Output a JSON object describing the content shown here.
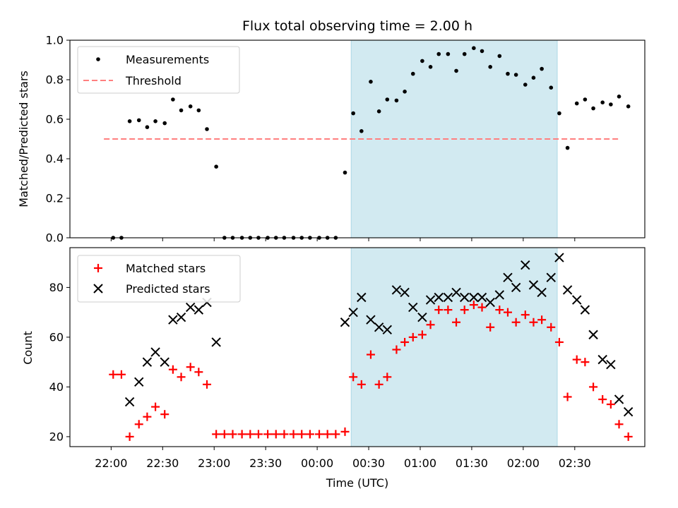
{
  "chart_data": [
    {
      "type": "scatter",
      "title": "Flux total observing time = 2.00 h",
      "ylabel": "Matched/Predicted stars",
      "xlabel": "",
      "ylim": [
        0.0,
        1.0
      ],
      "yticks": [
        "0.0",
        "0.2",
        "0.4",
        "0.6",
        "0.8",
        "1.0"
      ],
      "ytick_values": [
        0.0,
        0.2,
        0.4,
        0.6,
        0.8,
        1.0
      ],
      "legend_position": "top-left",
      "threshold": {
        "name": "Threshold",
        "value": 0.5,
        "x_start": -0.67,
        "x_end": 4.33,
        "color": "#ff7f7f"
      },
      "highlight": {
        "x_start": 1.73,
        "x_end": 3.73,
        "color": "#add8e6"
      },
      "series": [
        {
          "name": "Measurements",
          "color": "#000000",
          "marker": "dot",
          "points": [
            [
              -0.58,
              0.0
            ],
            [
              -0.5,
              0.0
            ],
            [
              -0.42,
              0.59
            ],
            [
              -0.33,
              0.595
            ],
            [
              -0.25,
              0.56
            ],
            [
              -0.17,
              0.59
            ],
            [
              -0.08,
              0.58
            ],
            [
              0.0,
              0.7
            ],
            [
              0.08,
              0.645
            ],
            [
              0.17,
              0.665
            ],
            [
              0.25,
              0.645
            ],
            [
              0.33,
              0.55
            ],
            [
              0.42,
              0.36
            ],
            [
              0.5,
              0.0
            ],
            [
              0.58,
              0.0
            ],
            [
              0.67,
              0.0
            ],
            [
              0.75,
              0.0
            ],
            [
              0.83,
              0.0
            ],
            [
              0.92,
              0.0
            ],
            [
              1.0,
              0.0
            ],
            [
              1.08,
              0.0
            ],
            [
              1.17,
              0.0
            ],
            [
              1.25,
              0.0
            ],
            [
              1.33,
              0.0
            ],
            [
              1.42,
              0.0
            ],
            [
              1.5,
              0.0
            ],
            [
              1.58,
              0.0
            ],
            [
              1.67,
              0.33
            ],
            [
              1.75,
              0.63
            ],
            [
              1.83,
              0.54
            ],
            [
              1.92,
              0.79
            ],
            [
              2.0,
              0.64
            ],
            [
              2.08,
              0.7
            ],
            [
              2.17,
              0.695
            ],
            [
              2.25,
              0.74
            ],
            [
              2.33,
              0.83
            ],
            [
              2.42,
              0.895
            ],
            [
              2.5,
              0.865
            ],
            [
              2.58,
              0.93
            ],
            [
              2.67,
              0.93
            ],
            [
              2.75,
              0.845
            ],
            [
              2.83,
              0.93
            ],
            [
              2.92,
              0.96
            ],
            [
              3.0,
              0.945
            ],
            [
              3.08,
              0.865
            ],
            [
              3.17,
              0.92
            ],
            [
              3.25,
              0.83
            ],
            [
              3.33,
              0.825
            ],
            [
              3.42,
              0.775
            ],
            [
              3.5,
              0.81
            ],
            [
              3.58,
              0.855
            ],
            [
              3.67,
              0.76
            ],
            [
              3.75,
              0.63
            ],
            [
              3.83,
              0.455
            ],
            [
              3.92,
              0.68
            ],
            [
              4.0,
              0.7
            ],
            [
              4.08,
              0.655
            ],
            [
              4.17,
              0.685
            ],
            [
              4.25,
              0.675
            ],
            [
              4.33,
              0.715
            ],
            [
              4.42,
              0.665
            ]
          ]
        }
      ]
    },
    {
      "type": "scatter",
      "title": "",
      "ylabel": "Count",
      "xlabel": "Time (UTC)",
      "ylim": [
        16,
        96
      ],
      "yticks": [
        "20",
        "40",
        "60",
        "80"
      ],
      "ytick_values": [
        20,
        40,
        60,
        80
      ],
      "xlim": [
        -1.0,
        4.58
      ],
      "xticks": [
        "22:00",
        "22:30",
        "23:00",
        "23:30",
        "00:00",
        "00:30",
        "01:00",
        "01:30",
        "02:00",
        "02:30"
      ],
      "xtick_values": [
        -0.6,
        -0.1,
        0.4,
        0.9,
        1.4,
        1.9,
        2.4,
        2.9,
        3.4,
        3.9
      ],
      "legend_position": "top-left",
      "highlight": {
        "x_start": 1.73,
        "x_end": 3.73,
        "color": "#add8e6"
      },
      "series": [
        {
          "name": "Matched stars",
          "color": "#ff0000",
          "marker": "plus",
          "points": [
            [
              -0.58,
              45
            ],
            [
              -0.5,
              45
            ],
            [
              -0.42,
              20
            ],
            [
              -0.33,
              25
            ],
            [
              -0.25,
              28
            ],
            [
              -0.17,
              32
            ],
            [
              -0.08,
              29
            ],
            [
              0.0,
              47
            ],
            [
              0.08,
              44
            ],
            [
              0.17,
              48
            ],
            [
              0.25,
              46
            ],
            [
              0.33,
              41
            ],
            [
              0.42,
              21
            ],
            [
              0.5,
              21
            ],
            [
              0.58,
              21
            ],
            [
              0.67,
              21
            ],
            [
              0.75,
              21
            ],
            [
              0.83,
              21
            ],
            [
              0.92,
              21
            ],
            [
              1.0,
              21
            ],
            [
              1.08,
              21
            ],
            [
              1.17,
              21
            ],
            [
              1.25,
              21
            ],
            [
              1.33,
              21
            ],
            [
              1.42,
              21
            ],
            [
              1.5,
              21
            ],
            [
              1.58,
              21
            ],
            [
              1.67,
              22
            ],
            [
              1.75,
              44
            ],
            [
              1.83,
              41
            ],
            [
              1.92,
              53
            ],
            [
              2.0,
              41
            ],
            [
              2.08,
              44
            ],
            [
              2.17,
              55
            ],
            [
              2.25,
              58
            ],
            [
              2.33,
              60
            ],
            [
              2.42,
              61
            ],
            [
              2.5,
              65
            ],
            [
              2.58,
              71
            ],
            [
              2.67,
              71
            ],
            [
              2.75,
              66
            ],
            [
              2.83,
              71
            ],
            [
              2.92,
              73
            ],
            [
              3.0,
              72
            ],
            [
              3.08,
              64
            ],
            [
              3.17,
              71
            ],
            [
              3.25,
              70
            ],
            [
              3.33,
              66
            ],
            [
              3.42,
              69
            ],
            [
              3.5,
              66
            ],
            [
              3.58,
              67
            ],
            [
              3.67,
              64
            ],
            [
              3.75,
              58
            ],
            [
              3.83,
              36
            ],
            [
              3.92,
              51
            ],
            [
              4.0,
              50
            ],
            [
              4.08,
              40
            ],
            [
              4.17,
              35
            ],
            [
              4.25,
              33
            ],
            [
              4.33,
              25
            ],
            [
              4.42,
              20
            ]
          ]
        },
        {
          "name": "Predicted stars",
          "color": "#000000",
          "marker": "x",
          "points": [
            [
              -0.42,
              34
            ],
            [
              -0.33,
              42
            ],
            [
              -0.25,
              50
            ],
            [
              -0.17,
              54
            ],
            [
              -0.08,
              50
            ],
            [
              0.0,
              67
            ],
            [
              0.08,
              68
            ],
            [
              0.17,
              72
            ],
            [
              0.25,
              71
            ],
            [
              0.33,
              74
            ],
            [
              0.42,
              58
            ],
            [
              1.67,
              66
            ],
            [
              1.75,
              70
            ],
            [
              1.83,
              76
            ],
            [
              1.92,
              67
            ],
            [
              2.0,
              64
            ],
            [
              2.08,
              63
            ],
            [
              2.17,
              79
            ],
            [
              2.25,
              78
            ],
            [
              2.33,
              72
            ],
            [
              2.42,
              68
            ],
            [
              2.5,
              75
            ],
            [
              2.58,
              76
            ],
            [
              2.67,
              76
            ],
            [
              2.75,
              78
            ],
            [
              2.83,
              76
            ],
            [
              2.92,
              76
            ],
            [
              3.0,
              76
            ],
            [
              3.08,
              74
            ],
            [
              3.17,
              77
            ],
            [
              3.25,
              84
            ],
            [
              3.33,
              80
            ],
            [
              3.42,
              89
            ],
            [
              3.5,
              81
            ],
            [
              3.58,
              78
            ],
            [
              3.67,
              84
            ],
            [
              3.75,
              92
            ],
            [
              3.83,
              79
            ],
            [
              3.92,
              75
            ],
            [
              4.0,
              71
            ],
            [
              4.08,
              61
            ],
            [
              4.17,
              51
            ],
            [
              4.25,
              49
            ],
            [
              4.33,
              35
            ],
            [
              4.42,
              30
            ]
          ]
        }
      ]
    }
  ]
}
